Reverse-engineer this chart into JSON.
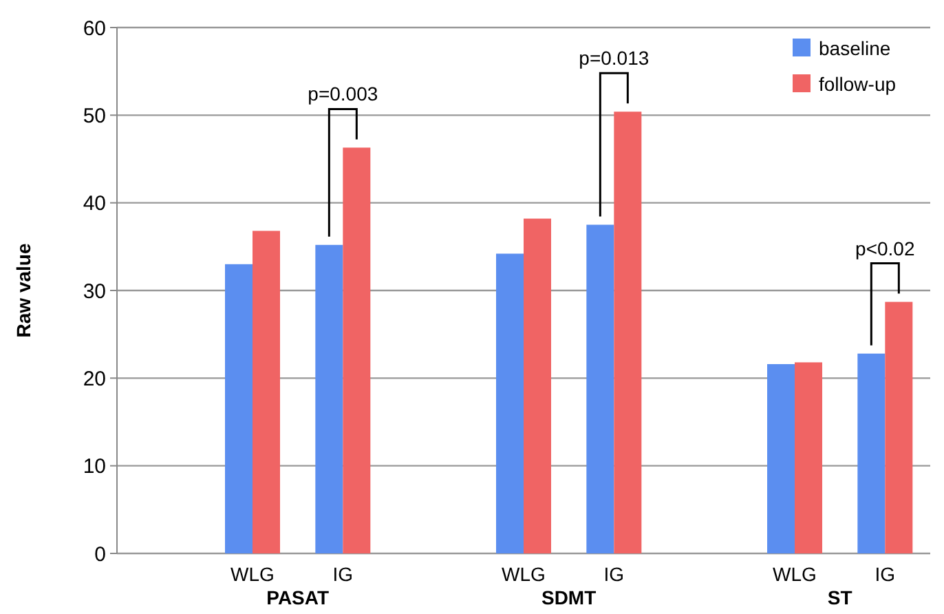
{
  "chart_data": {
    "type": "bar",
    "ylabel": "Raw value",
    "categories": [
      null,
      "WLG",
      "IG",
      null,
      "WLG",
      "IG",
      null,
      "WLG",
      "IG"
    ],
    "series": [
      {
        "name": "baseline",
        "color": "#5b8ef0",
        "values": [
          null,
          33,
          35.2,
          null,
          34.2,
          37.5,
          null,
          21.6,
          22.8
        ]
      },
      {
        "name": "follow-up",
        "color": "#f06464",
        "values": [
          null,
          36.8,
          46.3,
          null,
          38.2,
          50.4,
          null,
          21.8,
          28.7
        ]
      }
    ],
    "ylim": [
      0,
      60
    ],
    "yticks": [
      0,
      10,
      20,
      30,
      40,
      50,
      60
    ],
    "grid": "y",
    "legend": "top right",
    "annotations": [
      "PASAT",
      "SDMT",
      "ST",
      {
        "text": "p=0.003",
        "y": 46.3
      },
      {
        "text": "p=0.013",
        "y": 50.4
      },
      {
        "text": "p<0.02",
        "y": 28.7
      }
    ]
  }
}
